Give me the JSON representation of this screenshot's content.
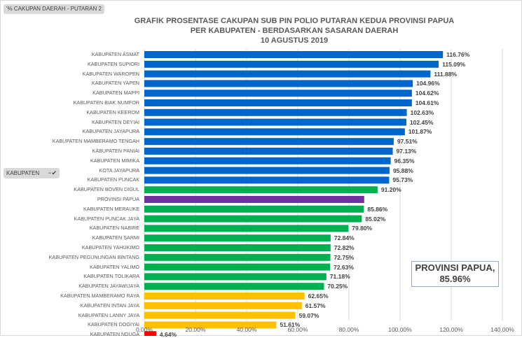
{
  "pivot_fields": {
    "value_field": "'% CAKUPAN DAERAH - PUTARAN 2",
    "axis_field": "KABUPATEN",
    "axis_field_icon": "filter-icon"
  },
  "chart_data": {
    "type": "bar",
    "orientation": "horizontal",
    "title": "GRAFIK PROSENTASE CAKUPAN SUB PIN POLIO PUTARAN KEDUA PROVINSI PAPUA",
    "subtitle": "PER KABUPATEN - BERDASARKAN SASARAN DAERAH",
    "date": "10 AGUSTUS 2019",
    "xlabel": "",
    "ylabel": "",
    "xlim": [
      0,
      140
    ],
    "x_ticks": [
      "0.00%",
      "20.00%",
      "40.00%",
      "60.00%",
      "80.00%",
      "100.00%",
      "120.00%",
      "140.00%"
    ],
    "grid": true,
    "legend": "none",
    "colors": {
      "above_95": "#0066cc",
      "province": "#7030a0",
      "70_to_95": "#00b050",
      "50_to_70": "#ffc000",
      "below_50": "#ff0000"
    },
    "bars": [
      {
        "label": "KABUPATEN ASMAT",
        "value": 116.76,
        "value_label": "116.76%",
        "color_key": "above_95"
      },
      {
        "label": "KABUPATEN SUPIORI",
        "value": 115.09,
        "value_label": "115.09%",
        "color_key": "above_95"
      },
      {
        "label": "KABUPATEN WAROPEN",
        "value": 111.88,
        "value_label": "111.88%",
        "color_key": "above_95"
      },
      {
        "label": "KABUPATEN YAPEN",
        "value": 104.96,
        "value_label": "104.96%",
        "color_key": "above_95"
      },
      {
        "label": "KABUPATEN MAPPI",
        "value": 104.62,
        "value_label": "104.62%",
        "color_key": "above_95"
      },
      {
        "label": "KABUPATEN BIAK NUMFOR",
        "value": 104.61,
        "value_label": "104.61%",
        "color_key": "above_95"
      },
      {
        "label": "KABUPATEN KEEROM",
        "value": 102.63,
        "value_label": "102.63%",
        "color_key": "above_95"
      },
      {
        "label": "KABUPATEN DEYIAI",
        "value": 102.45,
        "value_label": "102.45%",
        "color_key": "above_95"
      },
      {
        "label": "KABUPATEN JAYAPURA",
        "value": 101.87,
        "value_label": "101.87%",
        "color_key": "above_95"
      },
      {
        "label": "KABUPATEN MAMBERAMO TENGAH",
        "value": 97.51,
        "value_label": "97.51%",
        "color_key": "above_95"
      },
      {
        "label": "KABUPATEN PANIAI",
        "value": 97.13,
        "value_label": "97.13%",
        "color_key": "above_95"
      },
      {
        "label": "KABUPATEN MIMIKA",
        "value": 96.35,
        "value_label": "96.35%",
        "color_key": "above_95"
      },
      {
        "label": "KOTA JAYAPURA",
        "value": 95.88,
        "value_label": "95.88%",
        "color_key": "above_95"
      },
      {
        "label": "KABUPATEN PUNCAK",
        "value": 95.73,
        "value_label": "95.73%",
        "color_key": "above_95"
      },
      {
        "label": "KABUPATEN BOVEN DIGUL",
        "value": 91.2,
        "value_label": "91.20%",
        "color_key": "70_to_95"
      },
      {
        "label": "PROVINSI PAPUA",
        "value": 85.96,
        "value_label": "",
        "color_key": "province"
      },
      {
        "label": "KABUPATEN MERAUKE",
        "value": 85.86,
        "value_label": "85.86%",
        "color_key": "70_to_95"
      },
      {
        "label": "KABUPATEN PUNCAK JAYA",
        "value": 85.02,
        "value_label": "85.02%",
        "color_key": "70_to_95"
      },
      {
        "label": "KABUPATEN NABIRE",
        "value": 79.8,
        "value_label": "79.80%",
        "color_key": "70_to_95"
      },
      {
        "label": "KABUPATEN SARMI",
        "value": 72.84,
        "value_label": "72.84%",
        "color_key": "70_to_95"
      },
      {
        "label": "KABUPATEN YAHUKIMO",
        "value": 72.82,
        "value_label": "72.82%",
        "color_key": "70_to_95"
      },
      {
        "label": "KABUPATEN PEGUNUNGAN BINTANG",
        "value": 72.75,
        "value_label": "72.75%",
        "color_key": "70_to_95"
      },
      {
        "label": "KABUPATEN YALIMO",
        "value": 72.63,
        "value_label": "72.63%",
        "color_key": "70_to_95"
      },
      {
        "label": "KABUPATEN TOLIKARA",
        "value": 71.18,
        "value_label": "71.18%",
        "color_key": "70_to_95"
      },
      {
        "label": "KABUPATEN JAYAWIJAYA",
        "value": 70.25,
        "value_label": "70.25%",
        "color_key": "70_to_95"
      },
      {
        "label": "KABUPATEN MAMBERAMO RAYA",
        "value": 62.65,
        "value_label": "62.65%",
        "color_key": "50_to_70"
      },
      {
        "label": "KABUPATEN INTAN JAYA",
        "value": 61.57,
        "value_label": "61.57%",
        "color_key": "50_to_70"
      },
      {
        "label": "KABUPATEN LANNY JAYA",
        "value": 59.07,
        "value_label": "59.07%",
        "color_key": "50_to_70"
      },
      {
        "label": "KABUPATEN DOGIYAI",
        "value": 51.61,
        "value_label": "51.61%",
        "color_key": "50_to_70"
      },
      {
        "label": "KABUPATEN NDUGA",
        "value": 4.64,
        "value_label": "4.64%",
        "color_key": "below_50"
      }
    ],
    "annotations": [
      {
        "text_line1": "PROVINSI PAPUA,",
        "text_line2": "85.96%",
        "refers_to": "PROVINSI PAPUA"
      }
    ]
  }
}
